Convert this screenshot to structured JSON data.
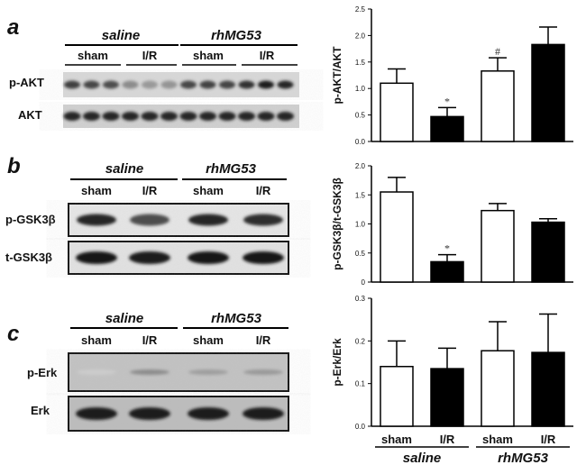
{
  "panel_a": {
    "letter": "a",
    "group_left": "saline",
    "group_right": "rhMG53",
    "conds": [
      "sham",
      "I/R",
      "sham",
      "I/R"
    ],
    "rows": [
      "p-AKT",
      "AKT"
    ]
  },
  "panel_b": {
    "letter": "b",
    "group_left": "saline",
    "group_right": "rhMG53",
    "conds": [
      "sham",
      "I/R",
      "sham",
      "I/R"
    ],
    "rows": [
      "p-GSK3β",
      "t-GSK3β"
    ]
  },
  "panel_c": {
    "letter": "c",
    "group_left": "saline",
    "group_right": "rhMG53",
    "conds": [
      "sham",
      "I/R",
      "sham",
      "I/R"
    ],
    "rows": [
      "p-Erk",
      "Erk"
    ]
  },
  "colors": {
    "open_bar": "#ffffff",
    "filled_bar": "#000000",
    "stroke": "#000000"
  },
  "chart_data": [
    {
      "type": "bar",
      "ylabel": "p-AKT/AKT",
      "categories": [
        "sham",
        "I/R",
        "sham",
        "I/R"
      ],
      "values": [
        1.1,
        0.47,
        1.33,
        1.83
      ],
      "errors": [
        0.27,
        0.17,
        0.25,
        0.33
      ],
      "fills": [
        "open",
        "filled",
        "open",
        "filled"
      ],
      "annotations": [
        "",
        "*",
        "#",
        ""
      ],
      "ylim": [
        0,
        2.5
      ],
      "yticks": [
        "0.0",
        "0.5",
        "1.0",
        "1.5",
        "2.0",
        "2.5"
      ],
      "ytick_values": [
        0,
        0.5,
        1.0,
        1.5,
        2.0,
        2.5
      ]
    },
    {
      "type": "bar",
      "ylabel": "p-GSK3β/t-GSK3β",
      "categories": [
        "sham",
        "I/R",
        "sham",
        "I/R"
      ],
      "values": [
        1.55,
        0.35,
        1.23,
        1.03
      ],
      "errors": [
        0.25,
        0.12,
        0.12,
        0.06
      ],
      "fills": [
        "open",
        "filled",
        "open",
        "filled"
      ],
      "annotations": [
        "",
        "*",
        "",
        ""
      ],
      "ylim": [
        0,
        2.0
      ],
      "yticks": [
        "0",
        "0.5",
        "1.0",
        "1.5",
        "2.0"
      ],
      "ytick_values": [
        0,
        0.5,
        1.0,
        1.5,
        2.0
      ]
    },
    {
      "type": "bar",
      "ylabel": "p-Erk/Erk",
      "categories": [
        "sham",
        "I/R",
        "sham",
        "I/R"
      ],
      "values": [
        0.14,
        0.135,
        0.177,
        0.173
      ],
      "errors": [
        0.06,
        0.048,
        0.068,
        0.09
      ],
      "fills": [
        "open",
        "filled",
        "open",
        "filled"
      ],
      "annotations": [
        "",
        "",
        "",
        ""
      ],
      "ylim": [
        0,
        0.3
      ],
      "yticks": [
        "0.0",
        "0.1",
        "0.2",
        "0.3"
      ],
      "ytick_values": [
        0,
        0.1,
        0.2,
        0.3
      ],
      "xgroups": [
        "saline",
        "rhMG53"
      ]
    }
  ]
}
